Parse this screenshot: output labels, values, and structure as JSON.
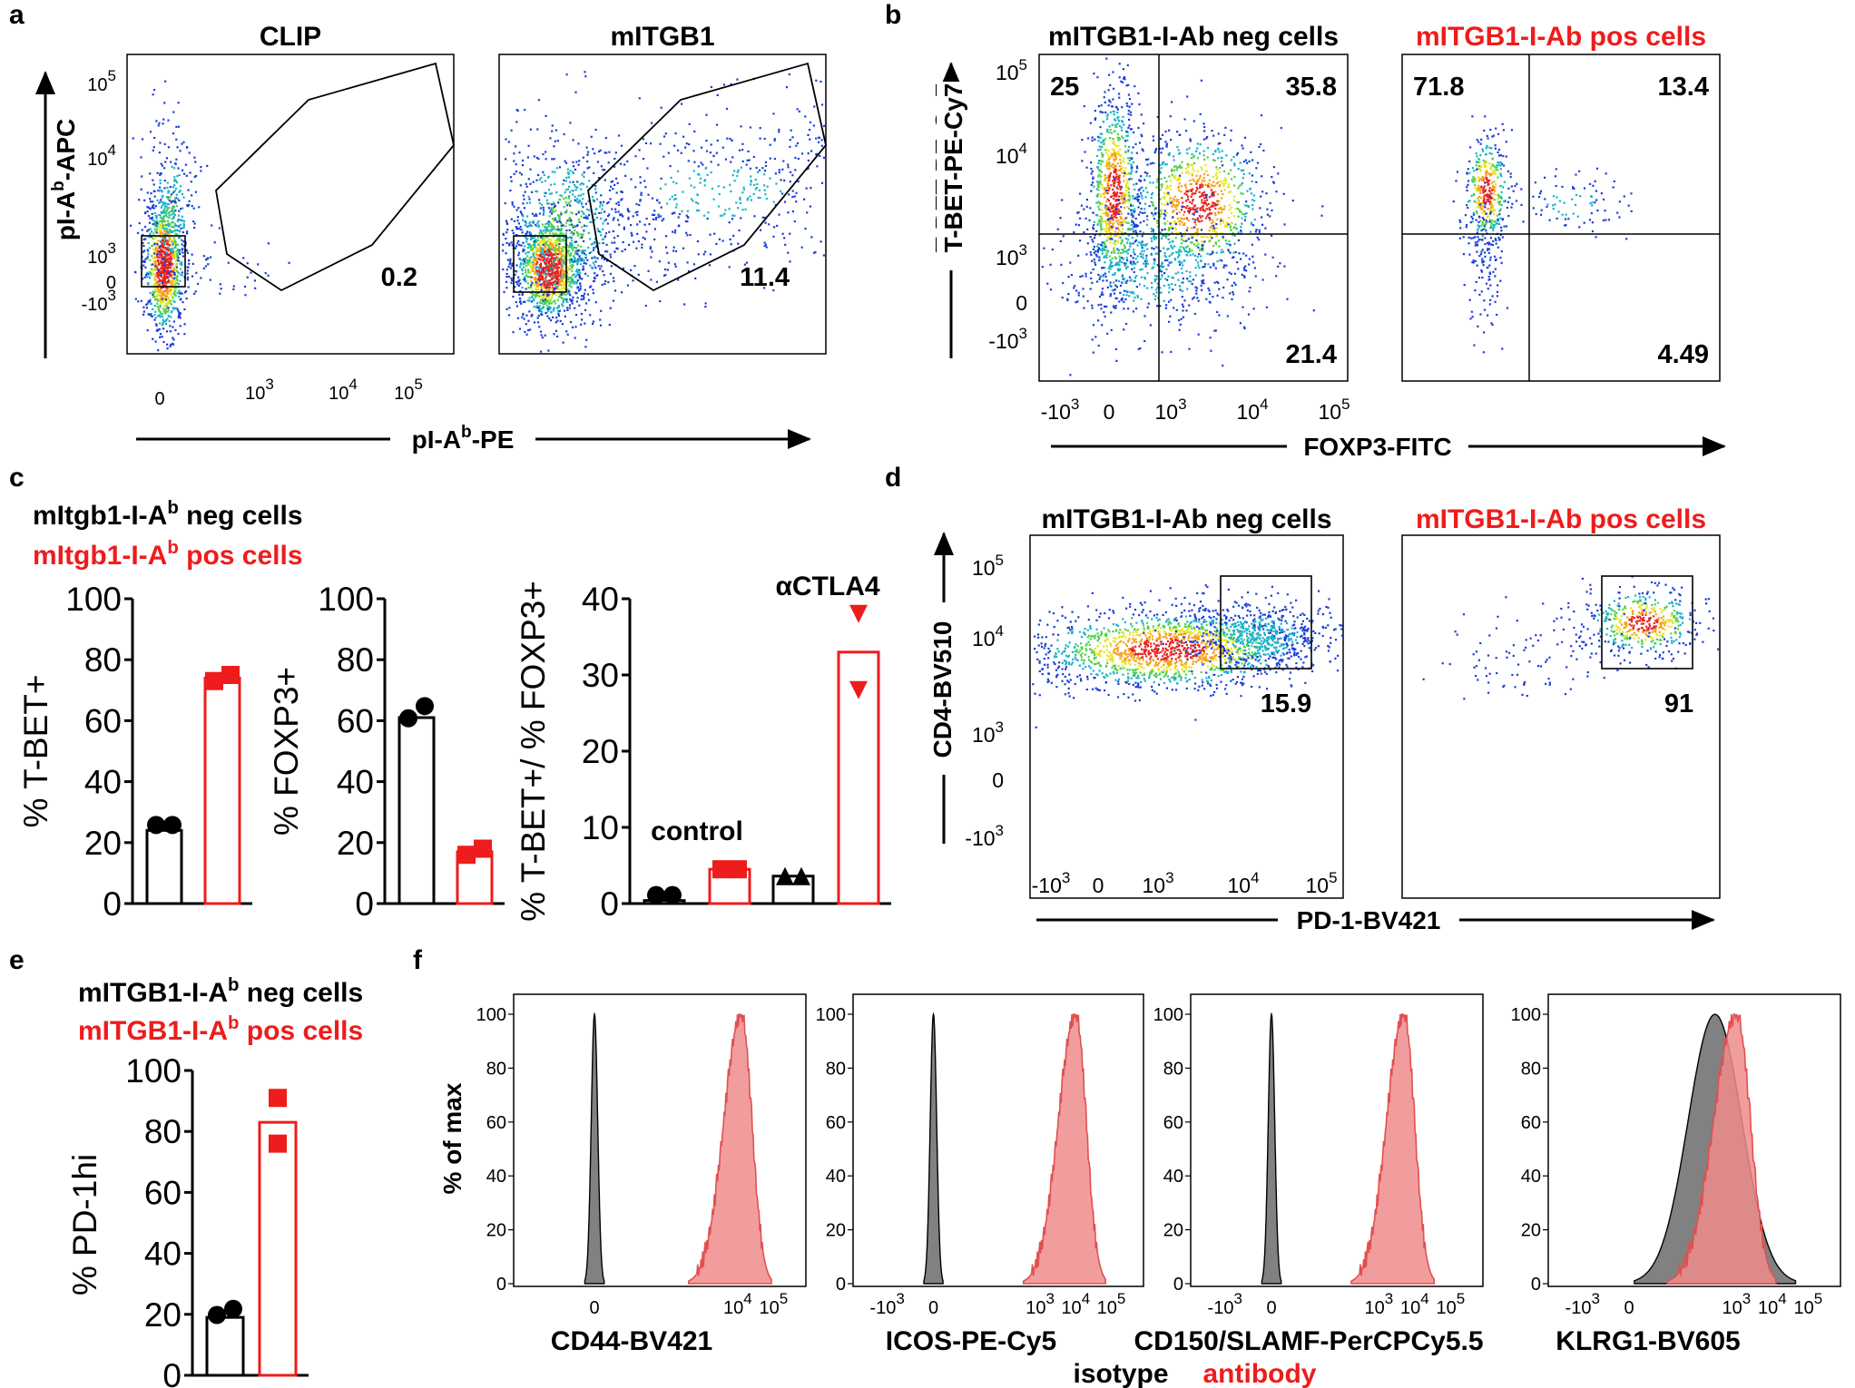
{
  "panels": [
    "a",
    "b",
    "c",
    "d",
    "e",
    "f"
  ],
  "colors": {
    "black": "#000000",
    "red": "#ee1c1c",
    "isotype_fill": "#7a7a7a",
    "antibody_fill": "#f08c8c"
  },
  "legend": {
    "neg_mixed": "mItgb1-I-Ab neg cells",
    "pos_mixed": "mItgb1-I-Ab pos cells",
    "neg": "mITGB1-I-Ab neg cells",
    "pos": "mITGB1-I-Ab pos cells"
  },
  "legend_parts": {
    "neg_mixed": {
      "pre": "mItgb1-I-A",
      "sup": "b",
      "post": " neg cells"
    },
    "pos_mixed": {
      "pre": "mItgb1-I-A",
      "sup": "b",
      "post": " pos cells"
    },
    "neg": {
      "pre": "mITGB1-I-A",
      "sup": "b",
      "post": " neg cells"
    },
    "pos": {
      "pre": "mITGB1-I-A",
      "sup": "b",
      "post": " pos cells"
    }
  },
  "flow_ticks": {
    "log": [
      "-10^3",
      "0",
      "10^3",
      "10^4",
      "10^5"
    ]
  },
  "chart_data": [
    {
      "id": "a",
      "type": "scatter",
      "plot": "flow density",
      "titles": [
        "CLIP",
        "mITGB1"
      ],
      "xlabel": "pI-Ab-PE",
      "ylabel": "pI-Ab-APC",
      "xlabel_parts": {
        "pre": "pI-A",
        "sup": "b",
        "post": "-PE"
      },
      "ylabel_parts": {
        "pre": "pI-A",
        "sup": "b",
        "post": "-APC"
      },
      "gate_percent": [
        0.2,
        11.4
      ],
      "yticks": [
        "10^5",
        "10^4",
        "10^3",
        "0",
        "-10^3"
      ],
      "xticks_left": [
        "0"
      ],
      "xticks_right": [
        "10^3",
        "10^4",
        "10^5"
      ]
    },
    {
      "id": "b",
      "type": "scatter",
      "plot": "flow quadrants",
      "titles": [
        "mITGB1-I-Ab neg cells",
        "mITGB1-I-Ab pos cells"
      ],
      "xlabel": "FOXP3-FITC",
      "ylabel": "T-BET-PE-Cy7",
      "quadrants": [
        {
          "upper_left": 25,
          "upper_right": 35.8,
          "lower_right": 21.4
        },
        {
          "upper_left": 71.8,
          "upper_right": 13.4,
          "lower_right": 4.49
        }
      ],
      "yticks": [
        "10^5",
        "10^4",
        "10^3",
        "0",
        "-10^3"
      ],
      "xticks": [
        "-10^3",
        "0",
        "10^3",
        "10^4",
        "10^5"
      ]
    },
    {
      "id": "c1",
      "type": "bar",
      "ylabel": "% T-BET+",
      "ylim": [
        0,
        100
      ],
      "yticks": [
        0,
        20,
        40,
        60,
        80,
        100
      ],
      "series": [
        {
          "name": "mItgb1-I-Ab neg cells",
          "mean": 24,
          "points": [
            24,
            24
          ]
        },
        {
          "name": "mItgb1-I-Ab pos cells",
          "mean": 74,
          "points": [
            73,
            75
          ]
        }
      ]
    },
    {
      "id": "c2",
      "type": "bar",
      "ylabel": "% FOXP3+",
      "ylim": [
        0,
        100
      ],
      "yticks": [
        0,
        20,
        40,
        60,
        80,
        100
      ],
      "series": [
        {
          "name": "mItgb1-I-Ab neg cells",
          "mean": 61,
          "points": [
            59,
            63
          ]
        },
        {
          "name": "mItgb1-I-Ab pos cells",
          "mean": 17,
          "points": [
            16,
            18
          ]
        }
      ]
    },
    {
      "id": "c3",
      "type": "bar",
      "ylabel": "% T-BET+/ % FOXP3+",
      "ylim": [
        0,
        40
      ],
      "yticks": [
        0,
        10,
        20,
        30,
        40
      ],
      "group_labels": [
        "control",
        "αCTLA4"
      ],
      "bars": [
        {
          "group": "control",
          "series": "neg",
          "mean": 0.4,
          "points": [
            0.4,
            0.4
          ],
          "marker": "circle"
        },
        {
          "group": "control",
          "series": "pos",
          "mean": 4.5,
          "points": [
            4.5,
            4.5
          ],
          "marker": "square"
        },
        {
          "group": "αCTLA4",
          "series": "neg",
          "mean": 3.6,
          "points": [
            3.6,
            3.6
          ],
          "marker": "triangle"
        },
        {
          "group": "αCTLA4",
          "series": "pos",
          "mean": 33,
          "points": [
            38,
            28
          ],
          "marker": "triangle-down"
        }
      ]
    },
    {
      "id": "d",
      "type": "scatter",
      "plot": "flow density",
      "titles": [
        "mITGB1-I-Ab neg cells",
        "mITGB1-I-Ab pos cells"
      ],
      "xlabel": "PD-1-BV421",
      "ylabel": "CD4-BV510",
      "gate_percent": [
        15.9,
        91
      ],
      "yticks": [
        "10^5",
        "10^4",
        "10^3",
        "0",
        "-10^3"
      ],
      "xticks": [
        "-10^3",
        "0",
        "10^3",
        "10^4",
        "10^5"
      ]
    },
    {
      "id": "e",
      "type": "bar",
      "ylabel": "% PD-1hi",
      "ylim": [
        0,
        100
      ],
      "yticks": [
        0,
        20,
        40,
        60,
        80,
        100
      ],
      "series": [
        {
          "name": "mITGB1-I-Ab neg cells",
          "mean": 19,
          "points": [
            18,
            20
          ]
        },
        {
          "name": "mITGB1-I-Ab pos cells",
          "mean": 83,
          "points": [
            91,
            76
          ]
        }
      ]
    },
    {
      "id": "f",
      "type": "area",
      "plot": "histogram overlay",
      "ylabel": "% of max",
      "ylim": [
        0,
        100
      ],
      "yticks": [
        0,
        20,
        40,
        60,
        80,
        100
      ],
      "xticks": [
        "-10^3",
        "0",
        "10^3",
        "10^4",
        "10^5"
      ],
      "markers": [
        "CD44-BV421",
        "ICOS-PE-Cy5",
        "CD150/SLAMF-PerCPCy5.5",
        "KLRG1-BV605"
      ],
      "series": [
        "isotype",
        "antibody"
      ],
      "isotype_peak_log10": [
        0,
        0,
        0,
        2.4
      ],
      "antibody_peak_log10": [
        4.1,
        4.0,
        3.7,
        3.0
      ]
    }
  ]
}
